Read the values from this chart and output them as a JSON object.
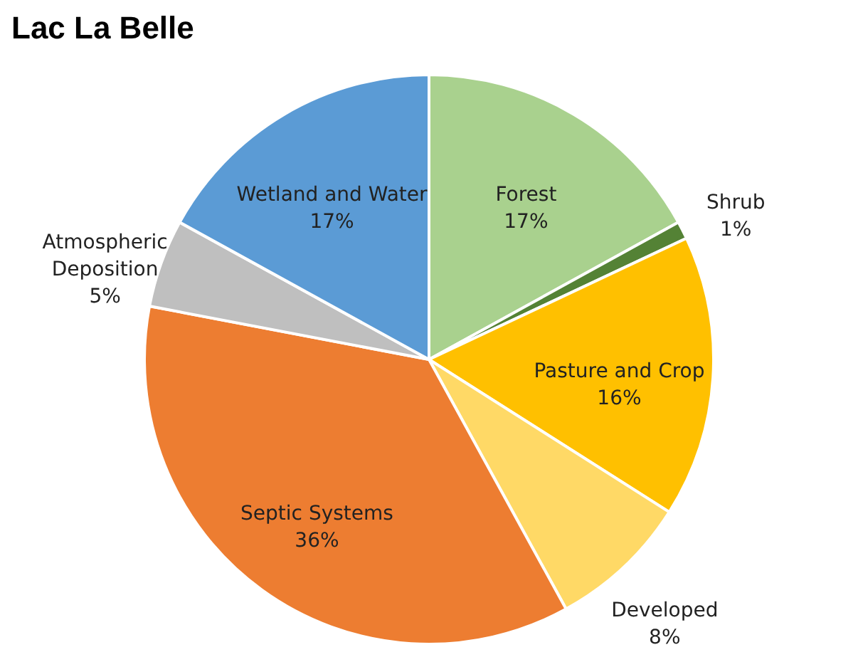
{
  "chart_data": {
    "type": "pie",
    "title": "Lac La Belle",
    "categories": [
      "Forest",
      "Shrub",
      "Pasture and Crop",
      "Developed",
      "Septic Systems",
      "Atmospheric Deposition",
      "Wetland and Water"
    ],
    "values": [
      17,
      1,
      16,
      8,
      36,
      5,
      17
    ],
    "value_labels": [
      "17%",
      "1%",
      "16%",
      "8%",
      "36%",
      "5%",
      "17%"
    ],
    "colors": [
      "#a9d18e",
      "#548235",
      "#ffc000",
      "#ffd966",
      "#ed7d31",
      "#bfbfbf",
      "#5b9bd5"
    ],
    "legend": false
  }
}
